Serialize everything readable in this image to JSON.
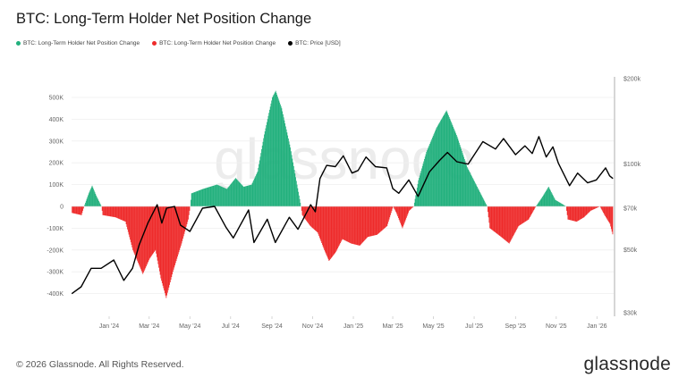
{
  "title": "BTC: Long-Term Holder Net Position Change",
  "legend": [
    {
      "label": "BTC: Long-Term Holder Net Position Change",
      "color": "#22b07d"
    },
    {
      "label": "BTC: Long-Term Holder Net Position Change",
      "color": "#ee2b2b"
    },
    {
      "label": "BTC: Price [USD]",
      "color": "#000000"
    }
  ],
  "watermark": "glassnode",
  "footer": "© 2026 Glassnode. All Rights Reserved.",
  "logo": "glassnode",
  "chart_data": {
    "type": "bar+line",
    "title": "BTC: Long-Term Holder Net Position Change",
    "grid": true,
    "legend_position": "top-left",
    "x_ticks": [
      "Jan '24",
      "Mar '24",
      "May '24",
      "Jul '24",
      "Sep '24",
      "Nov '24",
      "Jan '25",
      "Mar '25",
      "May '25",
      "Jul '25",
      "Sep '25",
      "Nov '25",
      "Jan '26"
    ],
    "x_tick_dates": [
      "2024-01-01",
      "2024-03-01",
      "2024-05-01",
      "2024-07-01",
      "2024-09-01",
      "2024-11-01",
      "2025-01-01",
      "2025-03-01",
      "2025-05-01",
      "2025-07-01",
      "2025-09-01",
      "2025-11-01",
      "2026-01-01"
    ],
    "x_range": [
      "2023-11-06",
      "2026-01-25"
    ],
    "left_axis": {
      "ticks": [
        "500K",
        "400K",
        "300K",
        "200K",
        "100K",
        "0",
        "-100K",
        "-200K",
        "-300K",
        "-400K"
      ],
      "tick_values": [
        500,
        400,
        300,
        200,
        100,
        0,
        -100,
        -200,
        -300,
        -400
      ],
      "range": [
        -490,
        585
      ],
      "unit": "K BTC"
    },
    "right_axis": {
      "scale": "log",
      "ticks": [
        "$200k",
        "$100k",
        "$70k",
        "$50k",
        "$30k"
      ],
      "tick_values": [
        200,
        100,
        70,
        50,
        30
      ],
      "range": [
        30,
        200
      ],
      "unit": "k USD"
    },
    "net_position": [
      [
        "2023-11-06",
        -30
      ],
      [
        "2023-11-20",
        -40
      ],
      [
        "2023-11-24",
        0
      ],
      [
        "2023-12-01",
        60
      ],
      [
        "2023-12-06",
        95
      ],
      [
        "2023-12-12",
        50
      ],
      [
        "2023-12-20",
        0
      ],
      [
        "2023-12-22",
        -40
      ],
      [
        "2024-01-10",
        -50
      ],
      [
        "2024-01-25",
        -70
      ],
      [
        "2024-02-05",
        -200
      ],
      [
        "2024-02-20",
        -310
      ],
      [
        "2024-03-01",
        -240
      ],
      [
        "2024-03-10",
        -200
      ],
      [
        "2024-03-18",
        -330
      ],
      [
        "2024-03-26",
        -420
      ],
      [
        "2024-04-05",
        -300
      ],
      [
        "2024-04-18",
        -170
      ],
      [
        "2024-04-28",
        -60
      ],
      [
        "2024-05-01",
        0
      ],
      [
        "2024-05-03",
        60
      ],
      [
        "2024-05-20",
        80
      ],
      [
        "2024-06-10",
        100
      ],
      [
        "2024-06-25",
        80
      ],
      [
        "2024-07-08",
        130
      ],
      [
        "2024-07-20",
        90
      ],
      [
        "2024-08-01",
        100
      ],
      [
        "2024-08-10",
        160
      ],
      [
        "2024-08-20",
        330
      ],
      [
        "2024-09-01",
        500
      ],
      [
        "2024-09-06",
        530
      ],
      [
        "2024-09-15",
        450
      ],
      [
        "2024-09-28",
        270
      ],
      [
        "2024-10-08",
        100
      ],
      [
        "2024-10-14",
        0
      ],
      [
        "2024-10-16",
        -40
      ],
      [
        "2024-10-28",
        -90
      ],
      [
        "2024-11-08",
        -120
      ],
      [
        "2024-11-18",
        -200
      ],
      [
        "2024-11-25",
        -250
      ],
      [
        "2024-12-05",
        -210
      ],
      [
        "2024-12-15",
        -150
      ],
      [
        "2024-12-28",
        -170
      ],
      [
        "2025-01-10",
        -180
      ],
      [
        "2025-01-22",
        -140
      ],
      [
        "2025-02-05",
        -130
      ],
      [
        "2025-02-20",
        -90
      ],
      [
        "2025-03-01",
        0
      ],
      [
        "2025-03-06",
        -30
      ],
      [
        "2025-03-15",
        -100
      ],
      [
        "2025-03-25",
        -20
      ],
      [
        "2025-04-01",
        0
      ],
      [
        "2025-04-08",
        120
      ],
      [
        "2025-04-20",
        250
      ],
      [
        "2025-05-05",
        360
      ],
      [
        "2025-05-20",
        440
      ],
      [
        "2025-06-05",
        320
      ],
      [
        "2025-06-20",
        180
      ],
      [
        "2025-07-05",
        90
      ],
      [
        "2025-07-20",
        0
      ],
      [
        "2025-07-24",
        -100
      ],
      [
        "2025-08-10",
        -140
      ],
      [
        "2025-08-22",
        -170
      ],
      [
        "2025-09-05",
        -90
      ],
      [
        "2025-09-20",
        -60
      ],
      [
        "2025-10-01",
        0
      ],
      [
        "2025-10-10",
        40
      ],
      [
        "2025-10-20",
        90
      ],
      [
        "2025-10-30",
        30
      ],
      [
        "2025-11-10",
        10
      ],
      [
        "2025-11-15",
        0
      ],
      [
        "2025-11-18",
        -60
      ],
      [
        "2025-12-01",
        -70
      ],
      [
        "2025-12-12",
        -50
      ],
      [
        "2025-12-22",
        -20
      ],
      [
        "2026-01-05",
        0
      ],
      [
        "2026-01-12",
        -40
      ],
      [
        "2026-01-20",
        -80
      ],
      [
        "2026-01-25",
        -140
      ]
    ],
    "price": [
      [
        "2023-11-06",
        35
      ],
      [
        "2023-11-20",
        37
      ],
      [
        "2023-12-05",
        43
      ],
      [
        "2023-12-20",
        43
      ],
      [
        "2024-01-08",
        46
      ],
      [
        "2024-01-23",
        39
      ],
      [
        "2024-02-05",
        43
      ],
      [
        "2024-02-15",
        52
      ],
      [
        "2024-02-28",
        62
      ],
      [
        "2024-03-13",
        72
      ],
      [
        "2024-03-20",
        62
      ],
      [
        "2024-03-27",
        70
      ],
      [
        "2024-04-08",
        71
      ],
      [
        "2024-04-17",
        61
      ],
      [
        "2024-05-01",
        58
      ],
      [
        "2024-05-20",
        70
      ],
      [
        "2024-06-07",
        71
      ],
      [
        "2024-06-24",
        60
      ],
      [
        "2024-07-05",
        55
      ],
      [
        "2024-07-28",
        69
      ],
      [
        "2024-08-05",
        53
      ],
      [
        "2024-08-25",
        64
      ],
      [
        "2024-09-06",
        53
      ],
      [
        "2024-09-27",
        65
      ],
      [
        "2024-10-10",
        59
      ],
      [
        "2024-10-29",
        72
      ],
      [
        "2024-11-05",
        68
      ],
      [
        "2024-11-12",
        89
      ],
      [
        "2024-11-22",
        99
      ],
      [
        "2024-12-05",
        98
      ],
      [
        "2024-12-17",
        107
      ],
      [
        "2024-12-30",
        93
      ],
      [
        "2025-01-08",
        95
      ],
      [
        "2025-01-20",
        106
      ],
      [
        "2025-02-03",
        98
      ],
      [
        "2025-02-20",
        97
      ],
      [
        "2025-03-01",
        82
      ],
      [
        "2025-03-10",
        79
      ],
      [
        "2025-03-25",
        88
      ],
      [
        "2025-04-08",
        77
      ],
      [
        "2025-04-25",
        94
      ],
      [
        "2025-05-10",
        103
      ],
      [
        "2025-05-22",
        110
      ],
      [
        "2025-06-05",
        102
      ],
      [
        "2025-06-22",
        100
      ],
      [
        "2025-07-14",
        120
      ],
      [
        "2025-08-02",
        113
      ],
      [
        "2025-08-14",
        123
      ],
      [
        "2025-09-01",
        108
      ],
      [
        "2025-09-15",
        116
      ],
      [
        "2025-09-26",
        109
      ],
      [
        "2025-10-06",
        125
      ],
      [
        "2025-10-17",
        106
      ],
      [
        "2025-10-27",
        115
      ],
      [
        "2025-11-04",
        101
      ],
      [
        "2025-11-21",
        84
      ],
      [
        "2025-12-03",
        93
      ],
      [
        "2025-12-18",
        86
      ],
      [
        "2025-12-31",
        88
      ],
      [
        "2026-01-14",
        97
      ],
      [
        "2026-01-20",
        91
      ],
      [
        "2026-01-25",
        89
      ]
    ]
  }
}
